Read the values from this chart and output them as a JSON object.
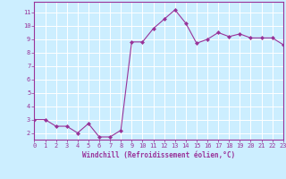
{
  "x": [
    0,
    1,
    2,
    3,
    4,
    5,
    6,
    7,
    8,
    9,
    10,
    11,
    12,
    13,
    14,
    15,
    16,
    17,
    18,
    19,
    20,
    21,
    22,
    23
  ],
  "y": [
    3.0,
    3.0,
    2.5,
    2.5,
    2.0,
    2.7,
    1.7,
    1.7,
    2.2,
    8.8,
    8.8,
    9.8,
    10.5,
    11.2,
    10.2,
    8.7,
    9.0,
    9.5,
    9.2,
    9.4,
    9.1,
    9.1,
    9.1,
    8.6
  ],
  "line_color": "#993399",
  "marker": "D",
  "marker_size": 2,
  "bg_color": "#cceeff",
  "grid_color": "#ffffff",
  "xlabel": "Windchill (Refroidissement éolien,°C)",
  "xlabel_color": "#993399",
  "tick_color": "#993399",
  "spine_color": "#993399",
  "ylim": [
    1.5,
    11.8
  ],
  "xlim": [
    0,
    23
  ],
  "yticks": [
    2,
    3,
    4,
    5,
    6,
    7,
    8,
    9,
    10,
    11
  ],
  "xticks": [
    0,
    1,
    2,
    3,
    4,
    5,
    6,
    7,
    8,
    9,
    10,
    11,
    12,
    13,
    14,
    15,
    16,
    17,
    18,
    19,
    20,
    21,
    22,
    23
  ]
}
